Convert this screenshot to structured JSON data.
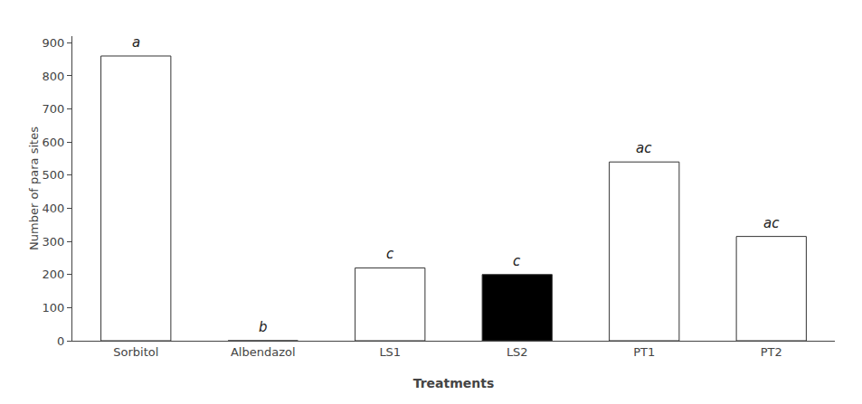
{
  "chart_data": {
    "type": "bar",
    "categories": [
      "Sorbitol",
      "Albendazol",
      "LS1",
      "LS2",
      "PT1",
      "PT2"
    ],
    "values": [
      860,
      0,
      220,
      200,
      540,
      315
    ],
    "annotations": [
      "a",
      "b",
      "c",
      "c",
      "ac",
      "ac"
    ],
    "colors": [
      "white",
      "white",
      "white",
      "black",
      "white",
      "white"
    ],
    "xlabel": "Treatments",
    "ylabel": "Number of para sites",
    "ylim": [
      0,
      920
    ],
    "yticks": [
      0,
      100,
      200,
      300,
      400,
      500,
      600,
      700,
      800,
      900
    ],
    "grid": false
  }
}
